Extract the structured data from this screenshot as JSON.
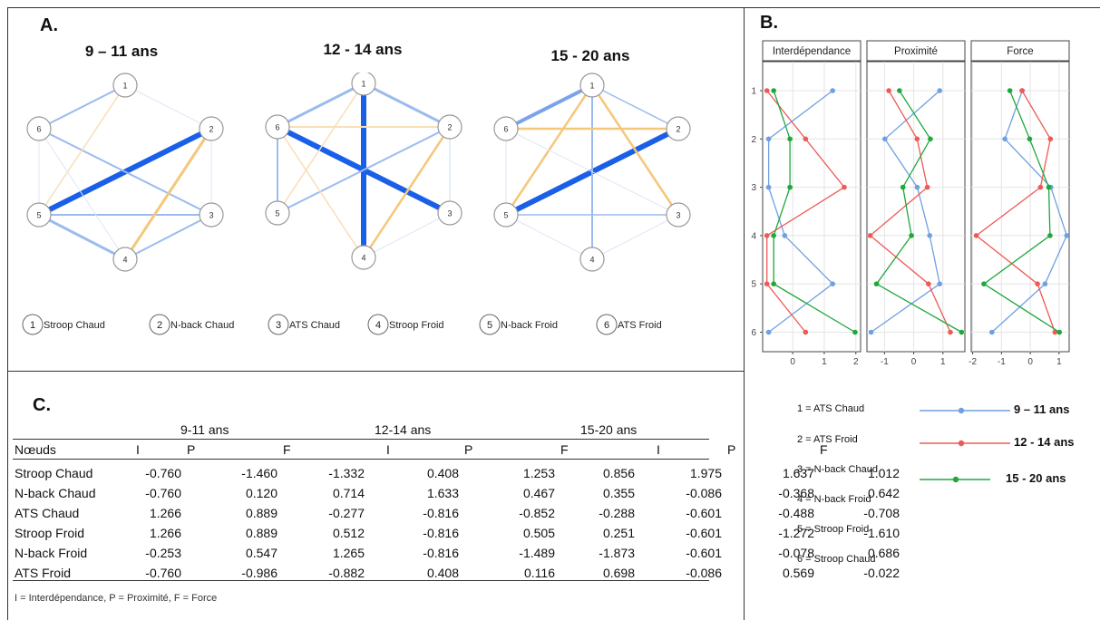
{
  "panels": {
    "a": "A.",
    "b": "B.",
    "c": "C."
  },
  "networks": [
    {
      "title": "9 – 11 ans"
    },
    {
      "title": "12 - 14 ans"
    },
    {
      "title": "15 - 20 ans"
    }
  ],
  "node_numbers": [
    "1",
    "2",
    "3",
    "4",
    "5",
    "6"
  ],
  "node_legend": [
    {
      "num": "1",
      "label": "Stroop Chaud"
    },
    {
      "num": "2",
      "label": "N-back Chaud"
    },
    {
      "num": "3",
      "label": "ATS Chaud"
    },
    {
      "num": "4",
      "label": "Stroop Froid"
    },
    {
      "num": "5",
      "label": "N-back Froid"
    },
    {
      "num": "6",
      "label": "ATS Froid"
    }
  ],
  "colors": {
    "blue": "#1a5fe8",
    "light_blue": "#9bbbef",
    "orange": "#f5c77a",
    "series_9_11": "#6fa0e0",
    "series_12_14": "#ee5a55",
    "series_15_20": "#1ea83c"
  },
  "table": {
    "groups": [
      "9-11 ans",
      "12-14 ans",
      "15-20 ans"
    ],
    "header": [
      "Nœuds",
      "I",
      "P",
      "F",
      "I",
      "P",
      "F",
      "I",
      "P",
      "F"
    ],
    "rows": [
      [
        "Stroop Chaud",
        "-0.760",
        "-1.460",
        "-1.332",
        "0.408",
        "1.253",
        "0.856",
        "1.975",
        "1.637",
        "1.012"
      ],
      [
        "N-back Chaud",
        "-0.760",
        "0.120",
        "0.714",
        "1.633",
        "0.467",
        "0.355",
        "-0.086",
        "-0.368",
        "0.642"
      ],
      [
        "ATS Chaud",
        "1.266",
        "0.889",
        "-0.277",
        "-0.816",
        "-0.852",
        "-0.288",
        "-0.601",
        "-0.488",
        "-0.708"
      ],
      [
        "Stroop Froid",
        "1.266",
        "0.889",
        "0.512",
        "-0.816",
        "0.505",
        "0.251",
        "-0.601",
        "-1.272",
        "-1.610"
      ],
      [
        "N-back Froid",
        "-0.253",
        "0.547",
        "1.265",
        "-0.816",
        "-1.489",
        "-1.873",
        "-0.601",
        "-0.078",
        "0.686"
      ],
      [
        "ATS Froid",
        "-0.760",
        "-0.986",
        "-0.882",
        "0.408",
        "0.116",
        "0.698",
        "-0.086",
        "0.569",
        "-0.022"
      ]
    ],
    "footnote": "I = Interdépendance, P = Proximité, F = Force"
  },
  "chart_data": {
    "type": "line",
    "facets": [
      "Interdépendance",
      "Proximité",
      "Force"
    ],
    "y_categories": [
      "1",
      "2",
      "3",
      "4",
      "5",
      "6"
    ],
    "x_ticks": [
      [
        "0",
        "1",
        "2"
      ],
      [
        "-1",
        "0",
        "1"
      ],
      [
        "-2",
        "-1",
        "0",
        "1"
      ]
    ],
    "xlim": [
      [
        -0.95,
        2.15
      ],
      [
        -1.6,
        1.75
      ],
      [
        -2.05,
        1.35
      ]
    ],
    "series": [
      {
        "name": "9 – 11 ans",
        "color": "#6fa0e0",
        "facet_values": [
          [
            1.266,
            -0.76,
            -0.76,
            -0.253,
            1.266,
            -0.76
          ],
          [
            0.889,
            -0.986,
            0.12,
            0.547,
            0.889,
            -1.46
          ],
          [
            -0.277,
            -0.882,
            0.714,
            1.265,
            0.512,
            -1.332
          ]
        ]
      },
      {
        "name": "12 - 14 ans",
        "color": "#ee5a55",
        "facet_values": [
          [
            -0.816,
            0.408,
            1.633,
            -0.816,
            -0.816,
            0.408
          ],
          [
            -0.852,
            0.116,
            0.467,
            -1.489,
            0.505,
            1.253
          ],
          [
            -0.288,
            0.698,
            0.355,
            -1.873,
            0.251,
            0.856
          ]
        ]
      },
      {
        "name": "15 - 20 ans",
        "color": "#1ea83c",
        "facet_values": [
          [
            -0.601,
            -0.086,
            -0.086,
            -0.601,
            -0.601,
            1.975
          ],
          [
            -0.488,
            0.569,
            -0.368,
            -0.078,
            -1.272,
            1.637
          ],
          [
            -0.708,
            -0.022,
            0.642,
            0.686,
            -1.61,
            1.012
          ]
        ]
      }
    ]
  },
  "b_legend": {
    "items": [
      "1 = ATS Chaud",
      "2 = ATS Froid",
      "3 = N-back Chaud",
      "4 = N-back Froid",
      "5 = Stroop Froid",
      "6 = Stroop Chaud"
    ],
    "ages": [
      "9 – 11 ans",
      "12 - 14 ans",
      "15 - 20 ans"
    ]
  }
}
